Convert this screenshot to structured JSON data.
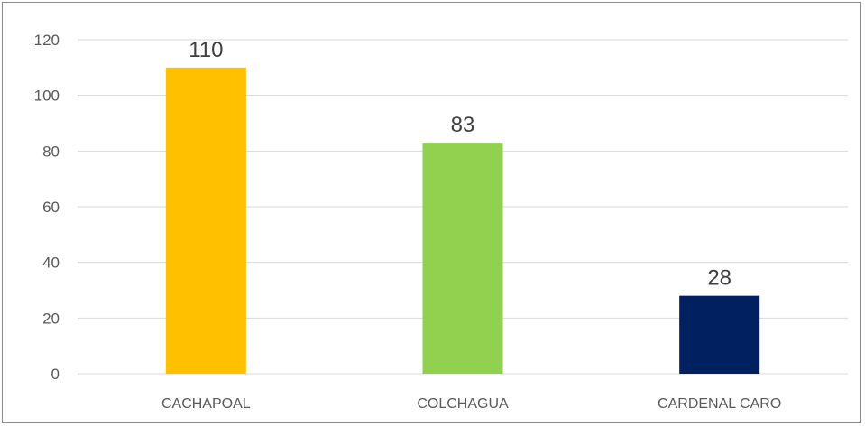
{
  "chart_data": {
    "type": "bar",
    "title": "",
    "xlabel": "",
    "ylabel": "",
    "categories": [
      "CACHAPOAL",
      "COLCHAGUA",
      "CARDENAL CARO"
    ],
    "values": [
      110,
      83,
      28
    ],
    "data_labels": [
      "110",
      "83",
      "28"
    ],
    "bar_colors": [
      "#FFC000",
      "#92D050",
      "#002060"
    ],
    "ylim": [
      0,
      120
    ],
    "y_ticks": [
      0,
      20,
      40,
      60,
      80,
      100,
      120
    ],
    "y_tick_labels": [
      "0",
      "20",
      "40",
      "60",
      "80",
      "100",
      "120"
    ],
    "grid": true,
    "legend": "none"
  }
}
